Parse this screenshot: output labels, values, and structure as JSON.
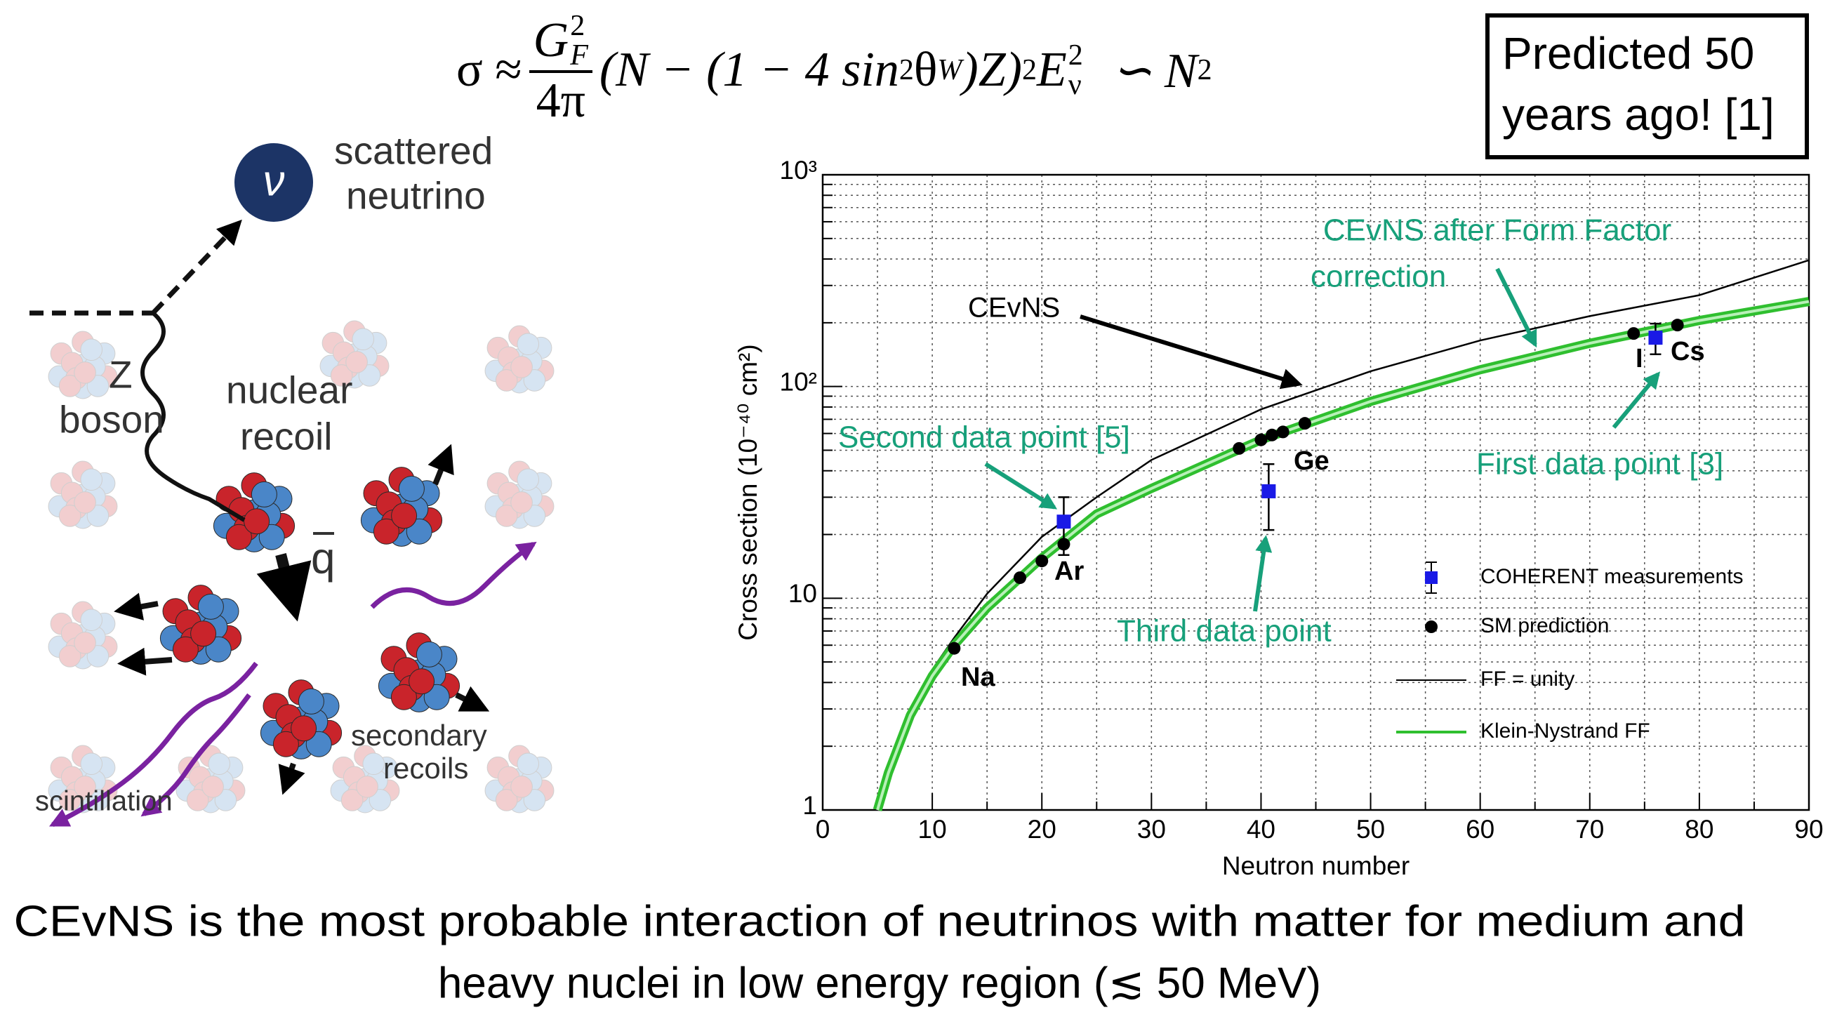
{
  "formula": {
    "sigma": "σ ≈",
    "num": "G",
    "num_sup": "2",
    "num_sub": "F",
    "den": "4π",
    "body1": "(N − (1 − 4 sin",
    "sup1": "2",
    "body2": "θ",
    "sub2": "W",
    "body3": ")Z)",
    "sup3": "2",
    "body4": "E",
    "sup4": "2",
    "sub4": "ν",
    "tail": "∽ N",
    "sup5": "2"
  },
  "callout": [
    "Predicted 50",
    "years ago! [1]"
  ],
  "diagram": {
    "neutrino": "ν",
    "scattered": [
      "scattered",
      "neutrino"
    ],
    "boson": [
      "Z",
      "boson"
    ],
    "recoil": [
      "nuclear",
      "recoil"
    ],
    "q": "q",
    "secondary": [
      "secondary",
      "recoils"
    ],
    "scintillation": "scintillation"
  },
  "chart_data": {
    "type": "scatter",
    "xlabel": "Neutron number",
    "ylabel": "Cross section (10⁻⁴⁰ cm²)",
    "xlim": [
      0,
      90
    ],
    "ylim": [
      1,
      1000
    ],
    "log_y": true,
    "grid": true,
    "xticks": [
      0,
      10,
      20,
      30,
      40,
      50,
      60,
      70,
      80,
      90
    ],
    "x_minor_ticks": [
      5,
      15,
      25,
      35,
      45,
      55,
      65,
      75,
      85
    ],
    "yticks": [
      1,
      10,
      {
        "value": 100,
        "label": "10²"
      },
      {
        "value": 1000,
        "label": "10³"
      }
    ],
    "y_minor_ticks": [
      2,
      3,
      4,
      5,
      6,
      7,
      8,
      9,
      20,
      30,
      40,
      50,
      60,
      70,
      80,
      90,
      200,
      300,
      400,
      500,
      600,
      700,
      800,
      900
    ],
    "series": [
      {
        "name": "COHERENT measurements",
        "type": "errorbar",
        "color": "#1a1ae6",
        "x": [
          22,
          40.7,
          76
        ],
        "values": [
          23,
          32,
          170
        ],
        "errors": [
          7,
          11,
          28
        ]
      },
      {
        "name": "SM prediction",
        "type": "scatter",
        "color": "#000000",
        "x": [
          12,
          18,
          20,
          22,
          38,
          40,
          41,
          42,
          44,
          74,
          78
        ],
        "values": [
          5.8,
          12.5,
          15,
          18,
          51,
          56,
          59,
          61,
          67,
          178,
          195
        ]
      },
      {
        "name": "FF = unity",
        "type": "line",
        "color": "#000000",
        "x": [
          5,
          6,
          8,
          10,
          12,
          15,
          20,
          25,
          30,
          40,
          50,
          60,
          70,
          80,
          90
        ],
        "values": [
          1,
          1.55,
          2.9,
          4.6,
          6.5,
          10.5,
          19.5,
          30,
          45,
          78,
          118,
          165,
          215,
          270,
          395
        ]
      },
      {
        "name": "Klein-Nystrand FF",
        "type": "band",
        "color": "#2fbf2f",
        "x": [
          5,
          6,
          8,
          10,
          12,
          15,
          20,
          25,
          30,
          40,
          50,
          60,
          70,
          80,
          90
        ],
        "values": [
          1,
          1.5,
          2.8,
          4.3,
          6,
          9,
          15.5,
          25,
          33,
          56,
          85,
          120,
          160,
          205,
          252
        ]
      }
    ],
    "labels": [
      "Na",
      "Ar",
      "Ge",
      "I",
      "Cs"
    ],
    "annotations": [
      "CEvNS",
      "CEvNS after Form Factor",
      "correction",
      "Second data point [5]",
      "Third data point",
      "First data point [3]"
    ]
  },
  "caption": [
    "CEvNS is the most probable interaction of neutrinos with matter for medium and",
    "heavy nuclei in low energy region (≲ 50 MeV)"
  ]
}
